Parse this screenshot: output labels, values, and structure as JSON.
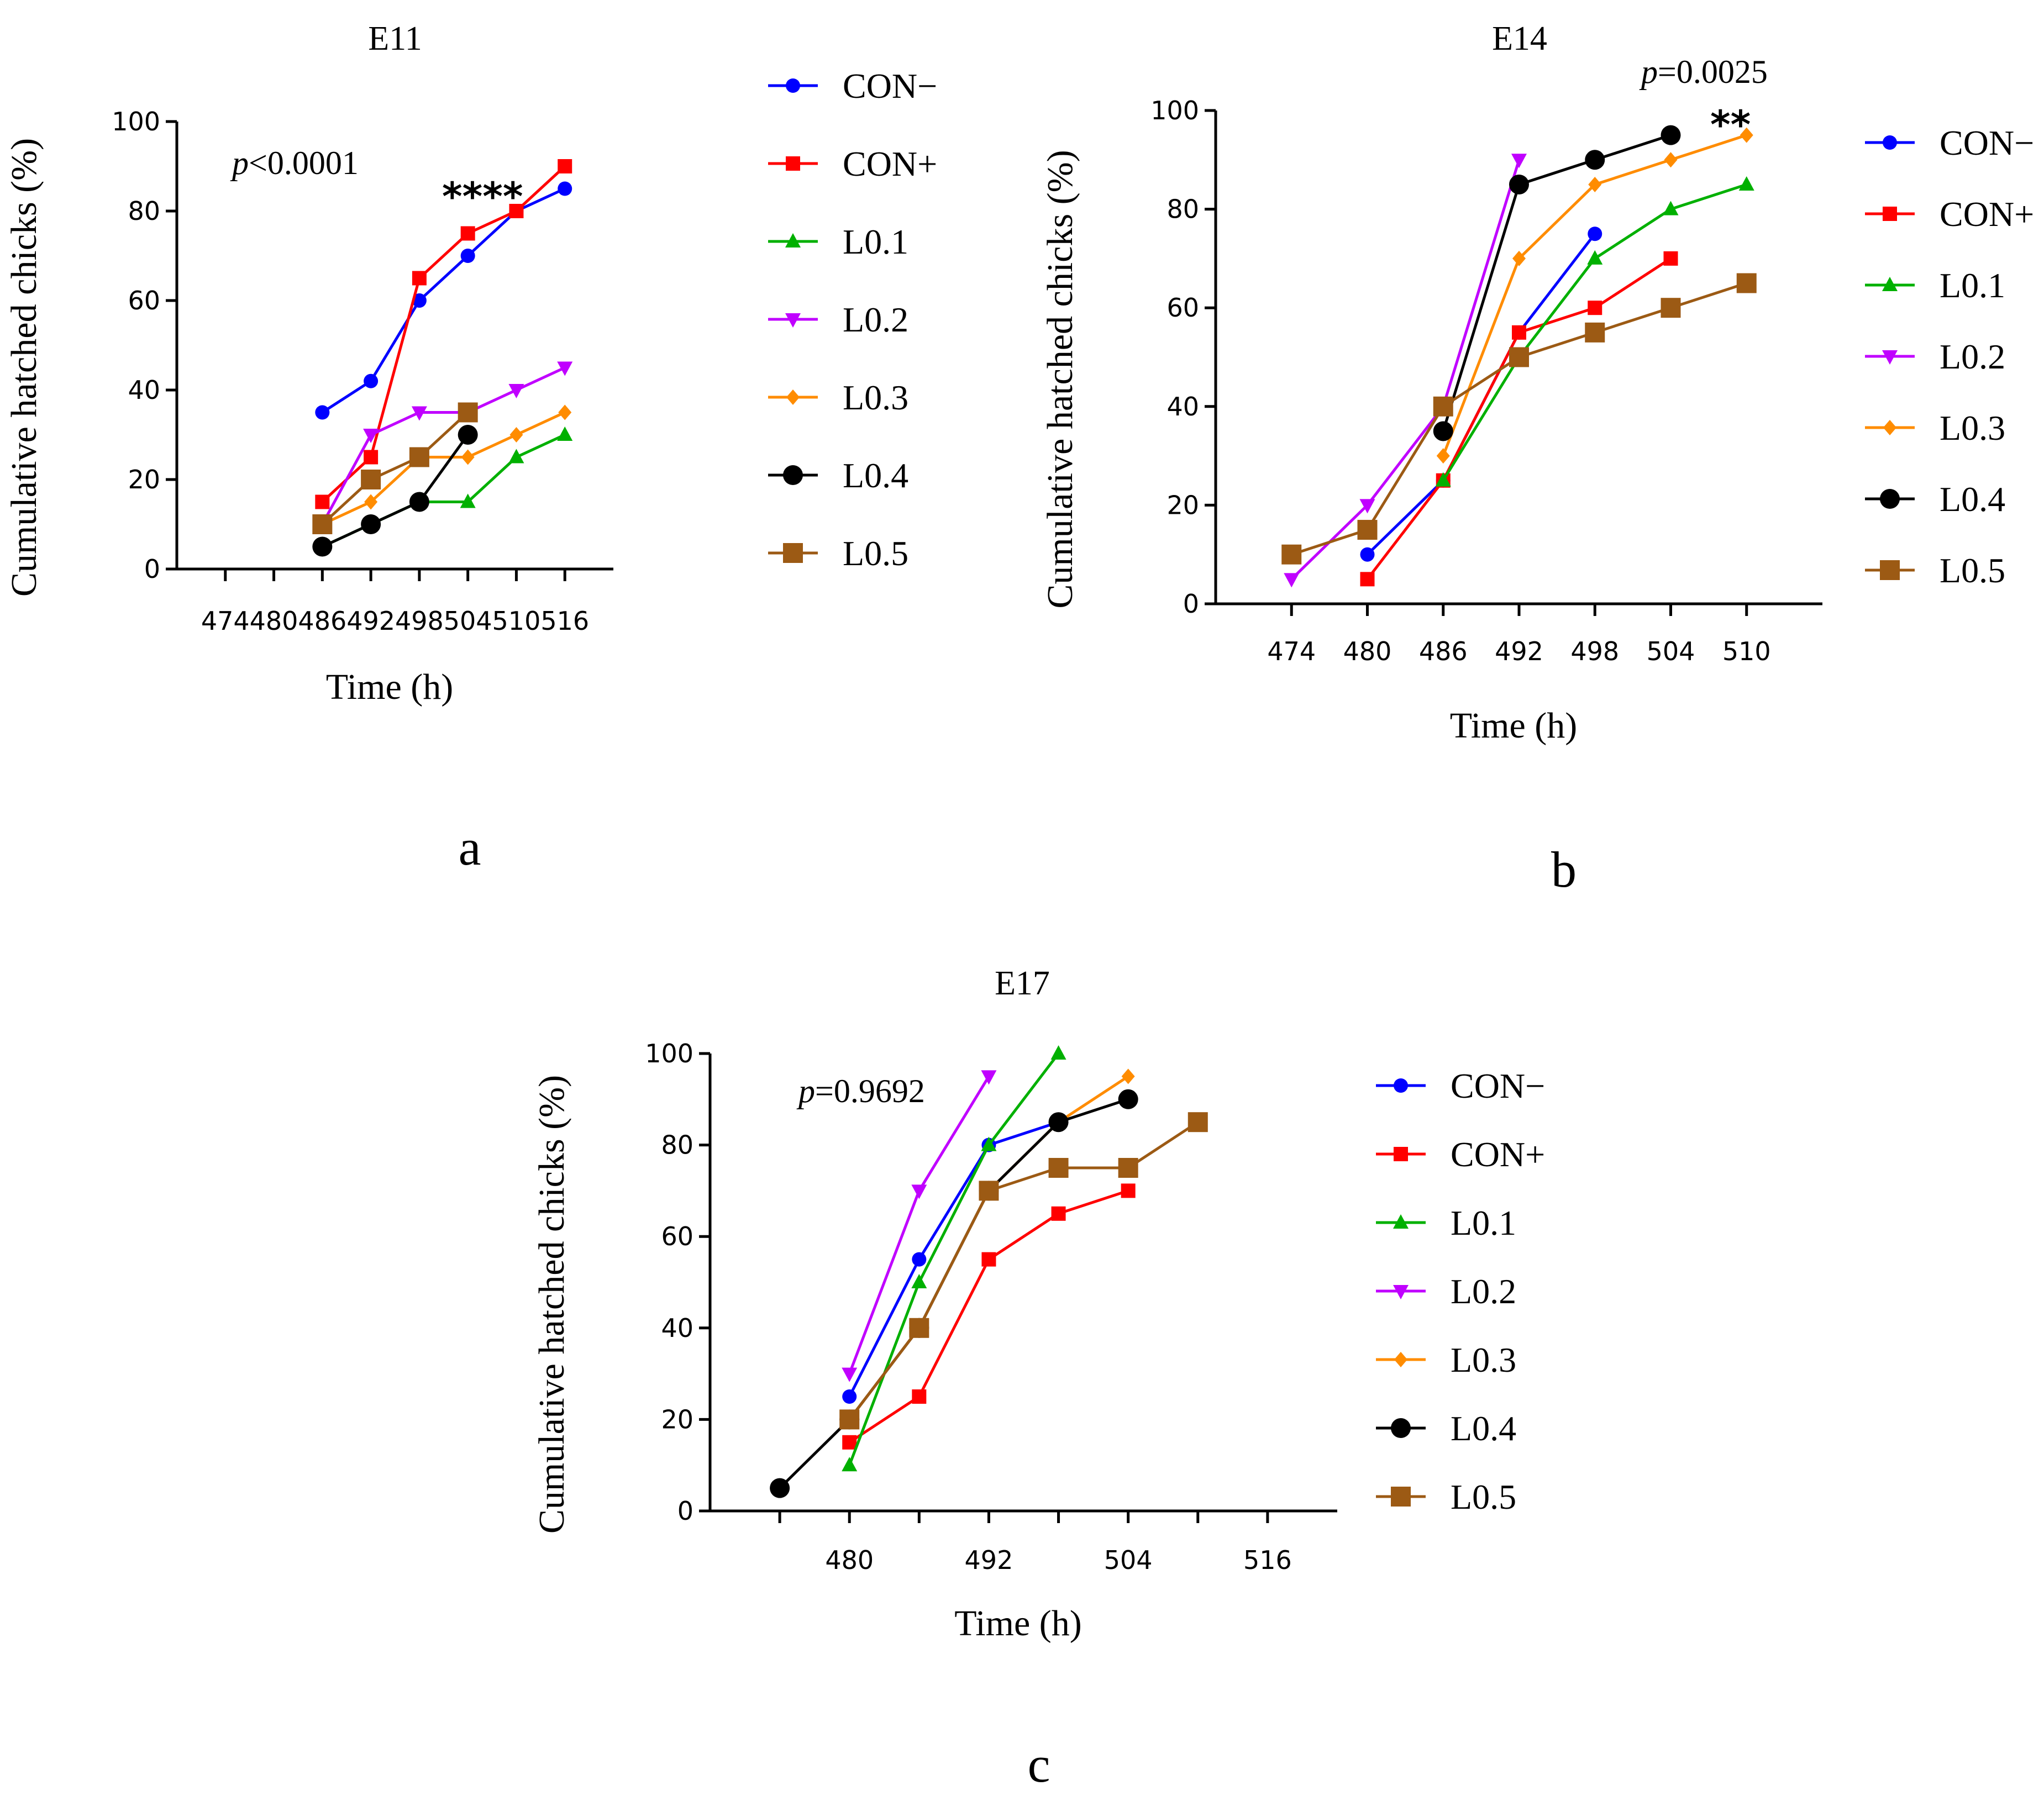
{
  "colors": {
    "CON−": "#0000ff",
    "CON+": "#ff0000",
    "L0.1": "#00b000",
    "L0.2": "#c000ff",
    "L0.3": "#ff8c00",
    "L0.4": "#000000",
    "L0.5": "#9c5a14"
  },
  "markers": {
    "CON−": "circle",
    "CON+": "square",
    "L0.1": "triangle-up",
    "L0.2": "triangle-down",
    "L0.3": "diamond",
    "L0.4": "big-circle",
    "L0.5": "big-square"
  },
  "chart_data": [
    {
      "panel": "a",
      "type": "line",
      "title": "E11",
      "xlabel": "Time (h)",
      "ylabel": "Cumulative hatched chicks (%)",
      "x_ticks": [
        474,
        480,
        486,
        492,
        498,
        504,
        510,
        516
      ],
      "y_ticks": [
        0,
        20,
        40,
        60,
        80,
        100
      ],
      "ylim": [
        0,
        100
      ],
      "p_prefix": "p",
      "p_text": "<0.0001",
      "significance": "****",
      "legend": [
        "CON−",
        "CON+",
        "L0.1",
        "L0.2",
        "L0.3",
        "L0.4",
        "L0.5"
      ],
      "series": [
        {
          "name": "CON−",
          "x": [
            486,
            492,
            498,
            504,
            510,
            516
          ],
          "values": [
            35,
            42,
            60,
            70,
            80,
            85
          ]
        },
        {
          "name": "CON+",
          "x": [
            486,
            492,
            498,
            504,
            510,
            516
          ],
          "values": [
            15,
            25,
            65,
            75,
            80,
            90
          ]
        },
        {
          "name": "L0.1",
          "x": [
            486,
            492,
            498,
            504,
            510,
            516
          ],
          "values": [
            5,
            10,
            15,
            15,
            25,
            30
          ]
        },
        {
          "name": "L0.2",
          "x": [
            486,
            492,
            498,
            504,
            510,
            516
          ],
          "values": [
            10,
            30,
            35,
            35,
            40,
            45
          ]
        },
        {
          "name": "L0.3",
          "x": [
            486,
            492,
            498,
            504,
            510,
            516
          ],
          "values": [
            10,
            15,
            25,
            25,
            30,
            35
          ]
        },
        {
          "name": "L0.4",
          "x": [
            486,
            492,
            498,
            504
          ],
          "values": [
            5,
            10,
            15,
            30
          ]
        },
        {
          "name": "L0.5",
          "x": [
            486,
            492,
            498,
            504
          ],
          "values": [
            10,
            20,
            25,
            35
          ]
        }
      ]
    },
    {
      "panel": "b",
      "type": "line",
      "title": "E14",
      "xlabel": "Time (h)",
      "ylabel": "Cumulative hatched chicks (%)",
      "x_ticks": [
        474,
        480,
        486,
        492,
        498,
        504,
        510
      ],
      "y_ticks": [
        0,
        20,
        40,
        60,
        80,
        100
      ],
      "ylim": [
        0,
        100
      ],
      "p_prefix": "p",
      "p_text": "=0.0025",
      "significance": "**",
      "legend": [
        "CON−",
        "CON+",
        "L0.1",
        "L0.2",
        "L0.3",
        "L0.4",
        "L0.5"
      ],
      "series": [
        {
          "name": "CON−",
          "x": [
            480,
            486,
            492,
            498
          ],
          "values": [
            10,
            25,
            55,
            75
          ]
        },
        {
          "name": "CON+",
          "x": [
            480,
            486,
            492,
            498,
            504
          ],
          "values": [
            5,
            25,
            55,
            60,
            70
          ]
        },
        {
          "name": "L0.1",
          "x": [
            486,
            492,
            498,
            504,
            510
          ],
          "values": [
            25,
            50,
            70,
            80,
            85
          ]
        },
        {
          "name": "L0.2",
          "x": [
            474,
            480,
            486,
            492
          ],
          "values": [
            5,
            20,
            40,
            90
          ]
        },
        {
          "name": "L0.3",
          "x": [
            486,
            492,
            498,
            504,
            510
          ],
          "values": [
            30,
            70,
            85,
            90,
            95
          ]
        },
        {
          "name": "L0.4",
          "x": [
            486,
            492,
            498,
            504
          ],
          "values": [
            35,
            85,
            90,
            95
          ]
        },
        {
          "name": "L0.5",
          "x": [
            474,
            480,
            486,
            492,
            498,
            504,
            510
          ],
          "values": [
            10,
            15,
            40,
            50,
            55,
            60,
            65
          ]
        }
      ]
    },
    {
      "panel": "c",
      "type": "line",
      "title": "E17",
      "xlabel": "Time (h)",
      "ylabel": "Cumulative hatched chicks (%)",
      "x_range": [
        468,
        522
      ],
      "x_ticks": [
        474,
        480,
        486,
        492,
        498,
        504,
        510,
        516
      ],
      "x_tick_labels": {
        "480": "480",
        "492": "492",
        "504": "504",
        "516": "516"
      },
      "y_ticks": [
        0,
        20,
        40,
        60,
        80,
        100
      ],
      "ylim": [
        0,
        100
      ],
      "p_prefix": "p",
      "p_text": "=0.9692",
      "significance": "",
      "legend": [
        "CON−",
        "CON+",
        "L0.1",
        "L0.2",
        "L0.3",
        "L0.4",
        "L0.5"
      ],
      "series": [
        {
          "name": "CON−",
          "x": [
            480,
            486,
            492,
            498
          ],
          "values": [
            25,
            55,
            80,
            85
          ]
        },
        {
          "name": "CON+",
          "x": [
            480,
            486,
            492,
            498,
            504
          ],
          "values": [
            15,
            25,
            55,
            65,
            70
          ]
        },
        {
          "name": "L0.1",
          "x": [
            480,
            486,
            492,
            498
          ],
          "values": [
            10,
            50,
            80,
            100
          ]
        },
        {
          "name": "L0.2",
          "x": [
            480,
            486,
            492
          ],
          "values": [
            30,
            70,
            95
          ]
        },
        {
          "name": "L0.3",
          "x": [
            480,
            486,
            492,
            498,
            504
          ],
          "values": [
            20,
            40,
            70,
            85,
            95
          ]
        },
        {
          "name": "L0.4",
          "x": [
            474,
            480,
            486,
            492,
            498,
            504
          ],
          "values": [
            5,
            20,
            40,
            70,
            85,
            90
          ]
        },
        {
          "name": "L0.5",
          "x": [
            480,
            486,
            492,
            498,
            504,
            510
          ],
          "values": [
            20,
            40,
            70,
            75,
            75,
            85
          ]
        }
      ]
    }
  ]
}
